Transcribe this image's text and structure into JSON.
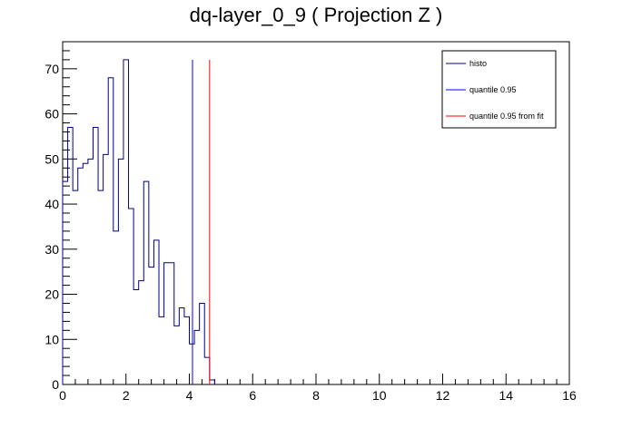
{
  "chart_data": {
    "type": "histogram",
    "title": "dq-layer_0_9 ( Projection Z )",
    "xlabel": "",
    "ylabel": "",
    "xlim": [
      0,
      16
    ],
    "ylim": [
      0,
      76
    ],
    "x_ticks": [
      0,
      2,
      4,
      6,
      8,
      10,
      12,
      14,
      16
    ],
    "y_ticks": [
      0,
      10,
      20,
      30,
      40,
      50,
      60,
      70
    ],
    "bin_width": 0.16,
    "bin_start": 0,
    "counts": [
      45,
      57,
      43,
      48,
      49,
      50,
      57,
      43,
      51,
      68,
      34,
      50,
      72,
      39,
      21,
      23,
      45,
      26,
      32,
      15,
      27,
      27,
      13,
      17,
      15,
      9,
      12,
      18,
      6,
      1
    ],
    "series": [
      {
        "name": "histo",
        "color": "#00008b"
      },
      {
        "name": "quantile 0.95",
        "color": "#0000ff",
        "x": 4.1
      },
      {
        "name": "quantile 0.95 from fit",
        "color": "#ff0000",
        "x": 4.64
      }
    ],
    "vline_top": 72,
    "legend_position": "top-right",
    "grid": false
  }
}
